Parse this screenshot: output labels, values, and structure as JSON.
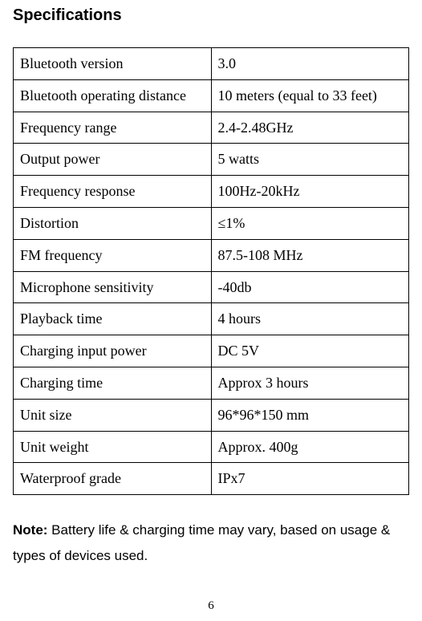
{
  "heading": "Specifications",
  "specs": {
    "rows": [
      {
        "label": "Bluetooth version",
        "value": "3.0"
      },
      {
        "label": "Bluetooth operating distance",
        "value": "10 meters (equal to 33 feet)"
      },
      {
        "label": "Frequency range",
        "value": "2.4-2.48GHz"
      },
      {
        "label": "Output power",
        "value": "5 watts"
      },
      {
        "label": "Frequency response",
        "value": "100Hz-20kHz"
      },
      {
        "label": "Distortion",
        "value": "≤1%"
      },
      {
        "label": "FM frequency",
        "value": "87.5-108 MHz"
      },
      {
        "label": "Microphone sensitivity",
        "value": "-40db"
      },
      {
        "label": "Playback time",
        "value": "4 hours"
      },
      {
        "label": "Charging input power",
        "value": "DC 5V"
      },
      {
        "label": "Charging time",
        "value": "Approx 3 hours"
      },
      {
        "label": "Unit size",
        "value": "96*96*150 mm"
      },
      {
        "label": "Unit weight",
        "value": "Approx. 400g"
      },
      {
        "label": "Waterproof grade",
        "value": "IPx7"
      }
    ]
  },
  "note": {
    "label": "Note:",
    "text": " Battery life & charging time may vary, based on usage & types of devices used."
  },
  "page_number": "6"
}
